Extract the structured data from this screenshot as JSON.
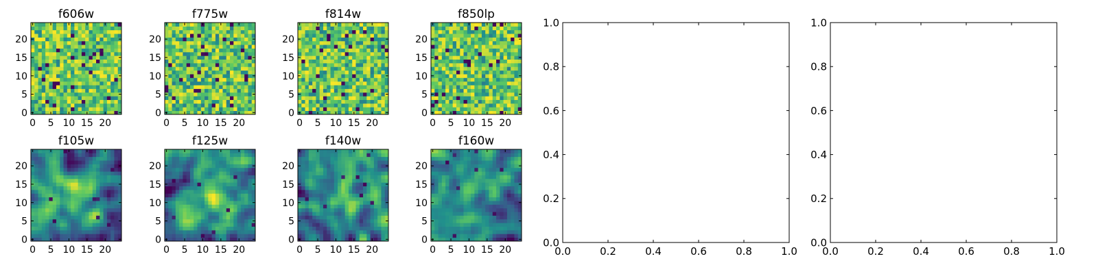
{
  "figure": {
    "background": "#ffffff",
    "colormap": "viridis",
    "colormap_stops": [
      "#440154",
      "#3b528b",
      "#21918c",
      "#5ec962",
      "#fde725"
    ]
  },
  "chart_data": [
    {
      "type": "heatmap",
      "title": "f606w",
      "xlim": [
        -0.5,
        24.5
      ],
      "ylim": [
        -0.5,
        24.5
      ],
      "xticks": [
        0,
        5,
        10,
        15,
        20
      ],
      "yticks": [
        0,
        5,
        10,
        15,
        20
      ],
      "grid_size": [
        25,
        25
      ],
      "pattern": "noise",
      "seed": 11
    },
    {
      "type": "heatmap",
      "title": "f775w",
      "xlim": [
        -0.5,
        24.5
      ],
      "ylim": [
        -0.5,
        24.5
      ],
      "xticks": [
        0,
        5,
        10,
        15,
        20
      ],
      "yticks": [
        0,
        5,
        10,
        15,
        20
      ],
      "grid_size": [
        25,
        25
      ],
      "pattern": "noise",
      "seed": 23
    },
    {
      "type": "heatmap",
      "title": "f814w",
      "xlim": [
        -0.5,
        24.5
      ],
      "ylim": [
        -0.5,
        24.5
      ],
      "xticks": [
        0,
        5,
        10,
        15,
        20
      ],
      "yticks": [
        0,
        5,
        10,
        15,
        20
      ],
      "grid_size": [
        25,
        25
      ],
      "pattern": "noise",
      "seed": 37
    },
    {
      "type": "heatmap",
      "title": "f850lp",
      "xlim": [
        -0.5,
        24.5
      ],
      "ylim": [
        -0.5,
        24.5
      ],
      "xticks": [
        0,
        5,
        10,
        15,
        20
      ],
      "yticks": [
        0,
        5,
        10,
        15,
        20
      ],
      "grid_size": [
        25,
        25
      ],
      "pattern": "noise",
      "seed": 41
    },
    {
      "type": "heatmap",
      "title": "f105w",
      "xlim": [
        -0.5,
        24.5
      ],
      "ylim": [
        -0.5,
        24.5
      ],
      "xticks": [
        0,
        5,
        10,
        15,
        20
      ],
      "yticks": [
        0,
        5,
        10,
        15,
        20
      ],
      "grid_size": [
        25,
        25
      ],
      "pattern": "smooth",
      "seed": 53
    },
    {
      "type": "heatmap",
      "title": "f125w",
      "xlim": [
        -0.5,
        24.5
      ],
      "ylim": [
        -0.5,
        24.5
      ],
      "xticks": [
        0,
        5,
        10,
        15,
        20
      ],
      "yticks": [
        0,
        5,
        10,
        15,
        20
      ],
      "grid_size": [
        25,
        25
      ],
      "pattern": "smooth",
      "seed": 67
    },
    {
      "type": "heatmap",
      "title": "f140w",
      "xlim": [
        -0.5,
        24.5
      ],
      "ylim": [
        -0.5,
        24.5
      ],
      "xticks": [
        0,
        5,
        10,
        15,
        20
      ],
      "yticks": [
        0,
        5,
        10,
        15,
        20
      ],
      "grid_size": [
        25,
        25
      ],
      "pattern": "smooth",
      "seed": 79
    },
    {
      "type": "heatmap",
      "title": "f160w",
      "xlim": [
        -0.5,
        24.5
      ],
      "ylim": [
        -0.5,
        24.5
      ],
      "xticks": [
        0,
        5,
        10,
        15,
        20
      ],
      "yticks": [
        0,
        5,
        10,
        15,
        20
      ],
      "grid_size": [
        25,
        25
      ],
      "pattern": "smooth",
      "seed": 83
    },
    {
      "type": "line",
      "title": "",
      "series": [],
      "xlim": [
        0.0,
        1.0
      ],
      "ylim": [
        0.0,
        1.0
      ],
      "xticks": [
        "0.0",
        "0.2",
        "0.4",
        "0.6",
        "0.8",
        "1.0"
      ],
      "yticks": [
        "0.0",
        "0.2",
        "0.4",
        "0.6",
        "0.8",
        "1.0"
      ]
    },
    {
      "type": "line",
      "title": "",
      "series": [],
      "xlim": [
        0.0,
        1.0
      ],
      "ylim": [
        0.0,
        1.0
      ],
      "xticks": [
        "0.0",
        "0.2",
        "0.4",
        "0.6",
        "0.8",
        "1.0"
      ],
      "yticks": [
        "0.0",
        "0.2",
        "0.4",
        "0.6",
        "0.8",
        "1.0"
      ]
    }
  ]
}
